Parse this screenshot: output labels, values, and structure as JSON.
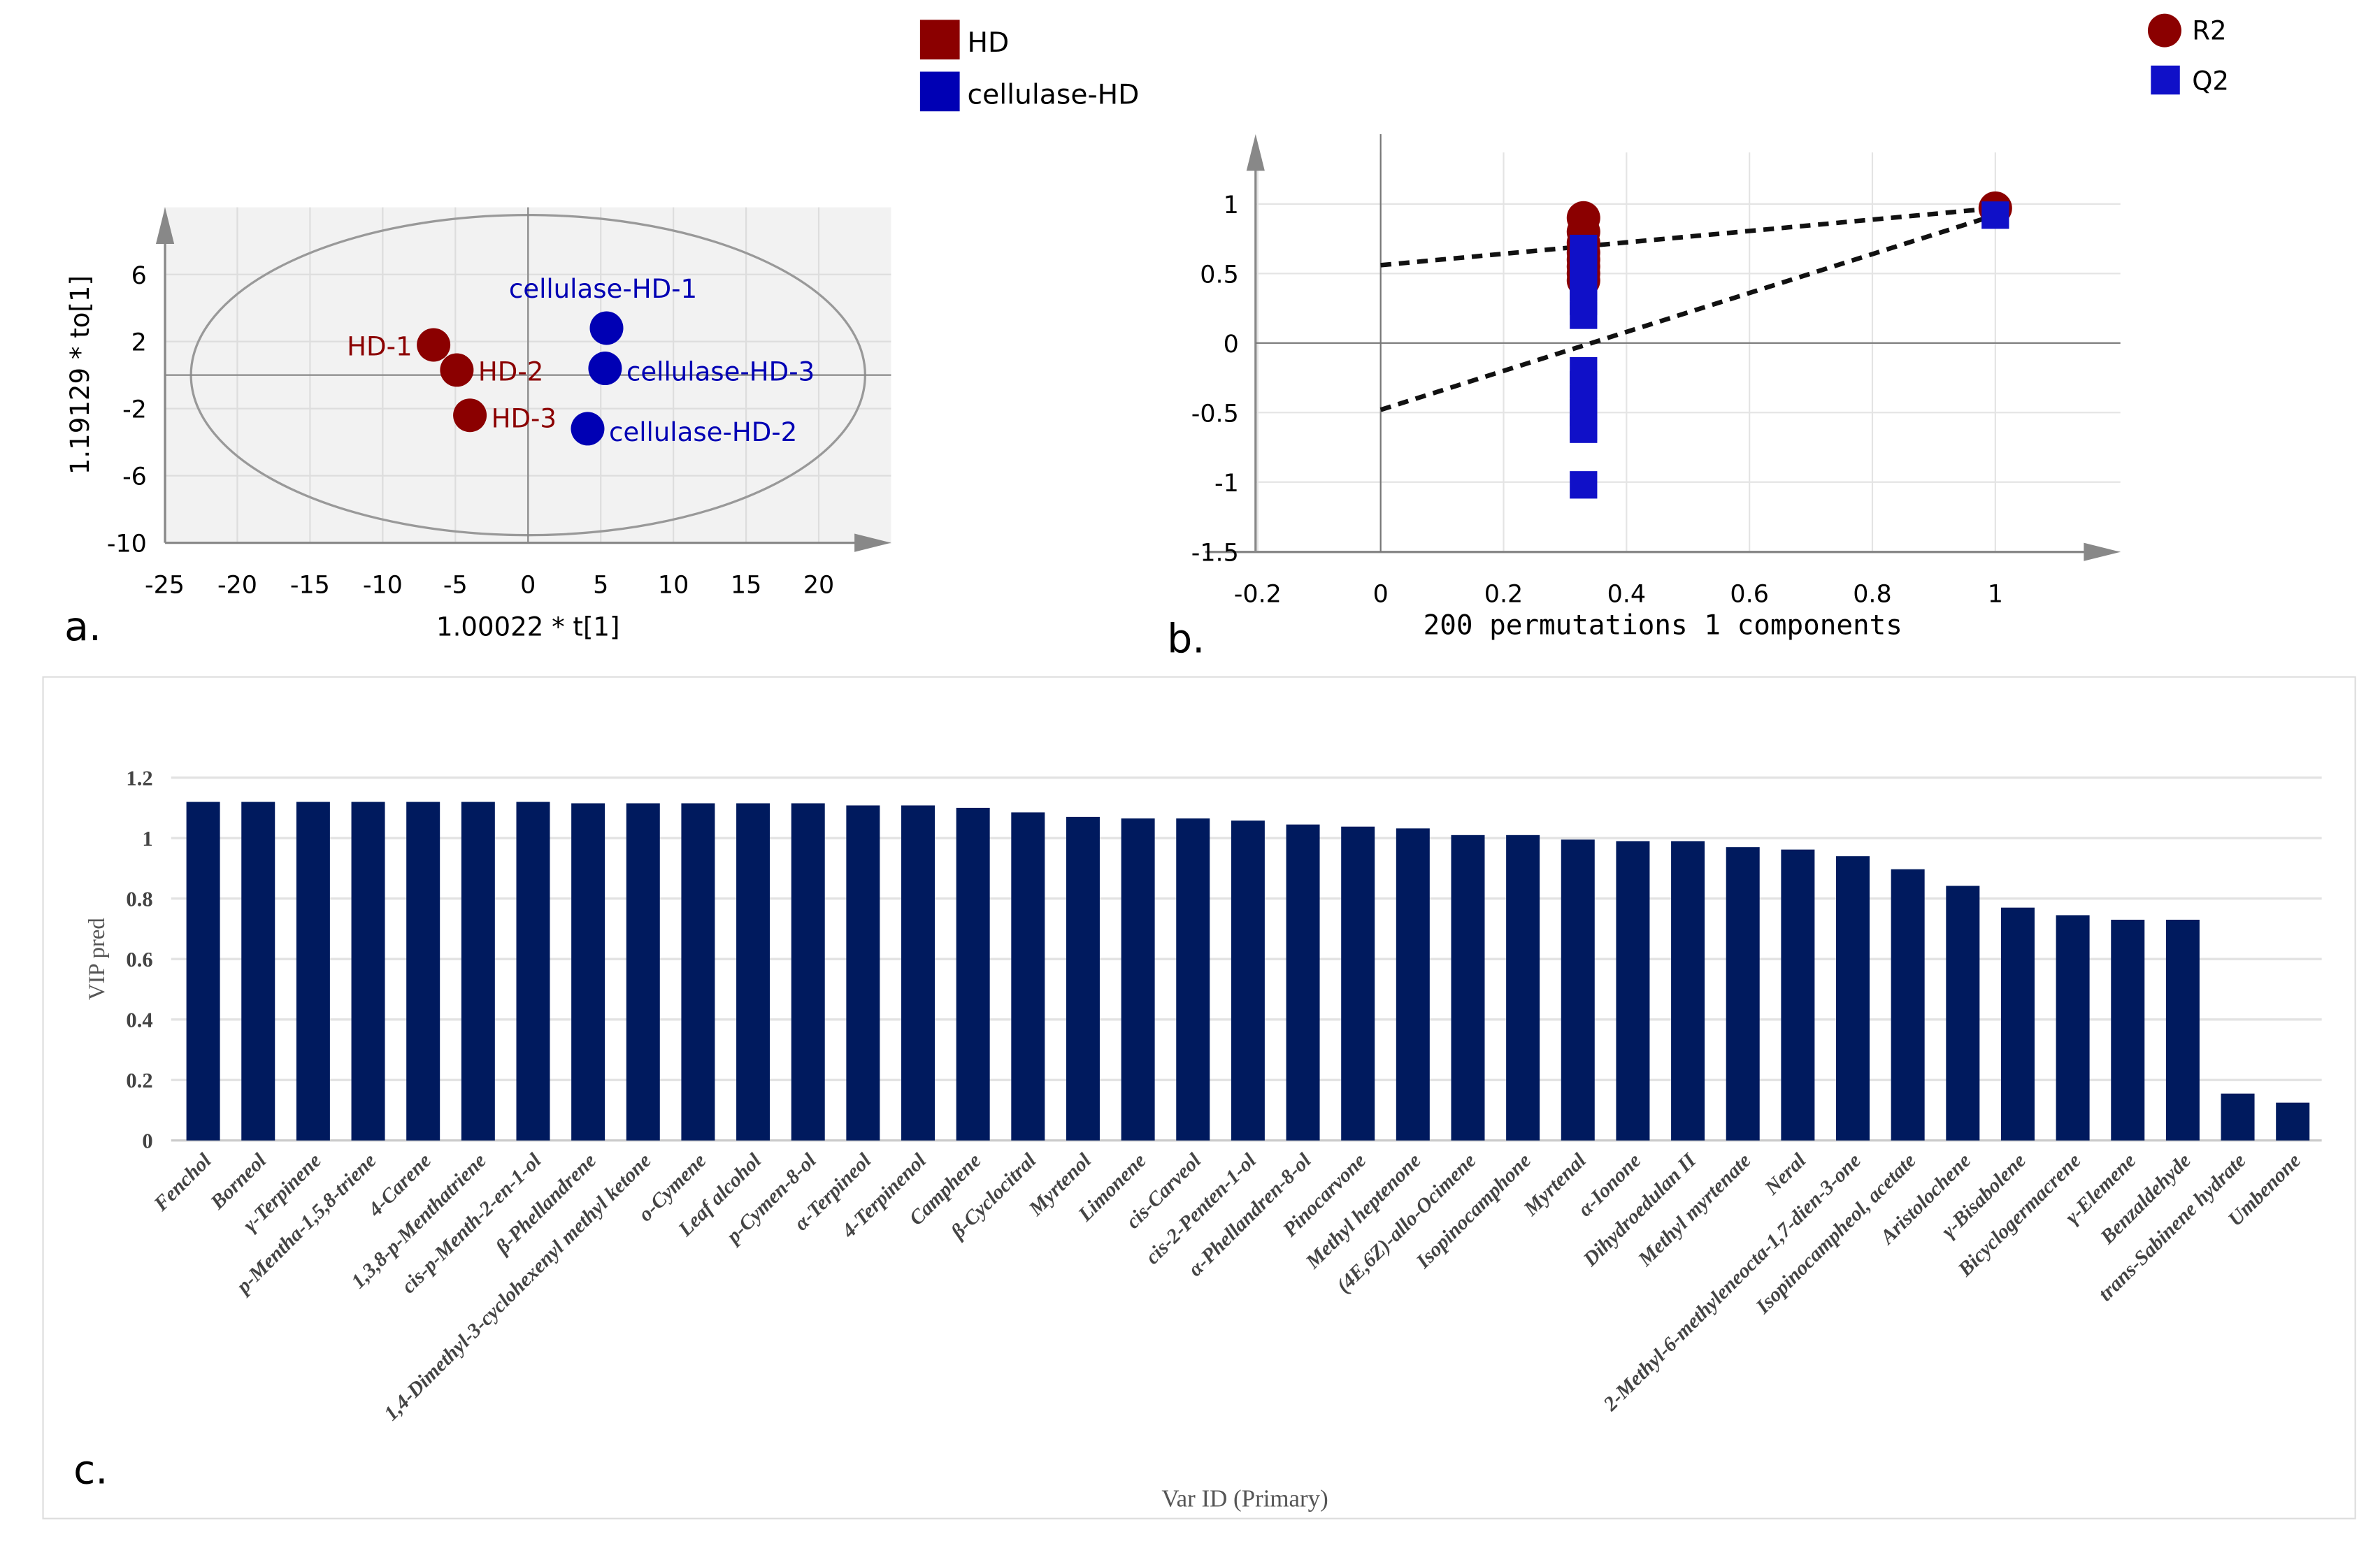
{
  "legend_a": {
    "items": [
      {
        "label": "HD",
        "color": "#8b0000"
      },
      {
        "label": "cellulase-HD",
        "color": "#0000b4"
      }
    ]
  },
  "legend_b": {
    "items": [
      {
        "label": "R2",
        "color": "#8b0000"
      },
      {
        "label": "Q2",
        "color": "#1010c8"
      }
    ]
  },
  "panel_labels": {
    "a": "a.",
    "b": "b.",
    "c": "c."
  },
  "chart_data": [
    {
      "type": "scatter",
      "title": "",
      "xlabel": "1.00022 * t[1]",
      "ylabel": "1.19129 * to[1]",
      "xlim": [
        -25,
        25
      ],
      "ylim": [
        -10,
        10
      ],
      "xticks": [
        "-25",
        "-20",
        "-15",
        "-10",
        "-5",
        "0",
        "5",
        "10",
        "15",
        "20"
      ],
      "yticks": [
        "6",
        "2",
        "-2",
        "-6",
        "-10"
      ],
      "points": [
        {
          "label": "HD-1",
          "group": "HD",
          "x": -6.5,
          "y": 1.8
        },
        {
          "label": "HD-2",
          "group": "HD",
          "x": -4.9,
          "y": 0.3
        },
        {
          "label": "HD-3",
          "group": "HD",
          "x": -4.0,
          "y": -2.4
        },
        {
          "label": "cellulase-HD-1",
          "group": "cellulase-HD",
          "x": 5.4,
          "y": 2.8
        },
        {
          "label": "cellulase-HD-3",
          "group": "cellulase-HD",
          "x": 5.3,
          "y": 0.4
        },
        {
          "label": "cellulase-HD-2",
          "group": "cellulase-HD",
          "x": 4.1,
          "y": -3.2
        }
      ]
    },
    {
      "type": "scatter",
      "title": "200 permutations 1 components",
      "xlim": [
        -0.2,
        1.2
      ],
      "ylim": [
        -1.5,
        1.2
      ],
      "xticks": [
        "-0.2",
        "0",
        "0.2",
        "0.4",
        "0.6",
        "0.8",
        "1"
      ],
      "yticks": [
        "1",
        "0.5",
        "0",
        "-0.5",
        "-1",
        "-1.5"
      ],
      "series": [
        {
          "name": "R2",
          "x": [
            0.33,
            0.33,
            0.33,
            0.33,
            0.33,
            0.33,
            0.33,
            0.33,
            1.0
          ],
          "y": [
            0.9,
            0.8,
            0.72,
            0.65,
            0.6,
            0.55,
            0.5,
            0.45,
            0.97
          ]
        },
        {
          "name": "Q2",
          "x": [
            0.33,
            0.33,
            0.33,
            0.33,
            0.33,
            0.33,
            0.33,
            0.33,
            0.33,
            0.33,
            0.33,
            0.33,
            0.33,
            1.0
          ],
          "y": [
            0.68,
            0.6,
            0.5,
            0.4,
            0.3,
            0.2,
            -0.2,
            -0.3,
            -0.4,
            -0.5,
            -0.6,
            -0.62,
            -1.02,
            0.92
          ]
        }
      ],
      "regression_lines": [
        {
          "name": "R2",
          "intercept": 0.56,
          "end": 0.97
        },
        {
          "name": "Q2",
          "intercept": -0.48,
          "end": 0.92
        }
      ]
    },
    {
      "type": "bar",
      "title": "",
      "xlabel": "Var ID (Primary)",
      "ylabel": "VIP pred",
      "ylim": [
        0,
        1.2
      ],
      "yticks": [
        "0",
        "0.2",
        "0.4",
        "0.6",
        "0.8",
        "1",
        "1.2"
      ],
      "color": "#001a5e",
      "categories": [
        "Fenchol",
        "Borneol",
        "γ-Terpinene",
        "p-Mentha-1,5,8-triene",
        "4-Carene",
        "1,3,8-p-Menthatriene",
        "cis-p-Menth-2-en-1-ol",
        "β-Phellandrene",
        "1,4-Dimethyl-3-cyclohexenyl methyl ketone",
        "o-Cymene",
        "Leaf alcohol",
        "p-Cymen-8-ol",
        "α-Terpineol",
        "4-Terpinenol",
        "Camphene",
        "β-Cyclocitral",
        "Myrtenol",
        "Limonene",
        "cis-Carveol",
        "cis-2-Penten-1-ol",
        "α-Phellandren-8-ol",
        "Pinocarvone",
        "Methyl heptenone",
        "(4E,6Z)-allo-Ocimene",
        "Isopinocamphone",
        "Myrtenal",
        "α-Ionone",
        "Dihydroedulan II",
        "Methyl myrtenate",
        "Neral",
        "2-Methyl-6-methyleneocta-1,7-dien-3-one",
        "Isopinocampheol, acetate",
        "Aristolochene",
        "γ-Bisabolene",
        "Bicyclogermacrene",
        "γ-Elemene",
        "Benzaldehyde",
        "trans-Sabinene hydrate",
        "Umbenone"
      ],
      "values": [
        1.12,
        1.12,
        1.12,
        1.12,
        1.12,
        1.12,
        1.12,
        1.115,
        1.115,
        1.115,
        1.115,
        1.115,
        1.108,
        1.108,
        1.1,
        1.085,
        1.07,
        1.065,
        1.065,
        1.058,
        1.045,
        1.038,
        1.032,
        1.01,
        1.01,
        0.995,
        0.99,
        0.99,
        0.97,
        0.962,
        0.94,
        0.897,
        0.842,
        0.77,
        0.745,
        0.73,
        0.73,
        0.155,
        0.125
      ]
    }
  ]
}
